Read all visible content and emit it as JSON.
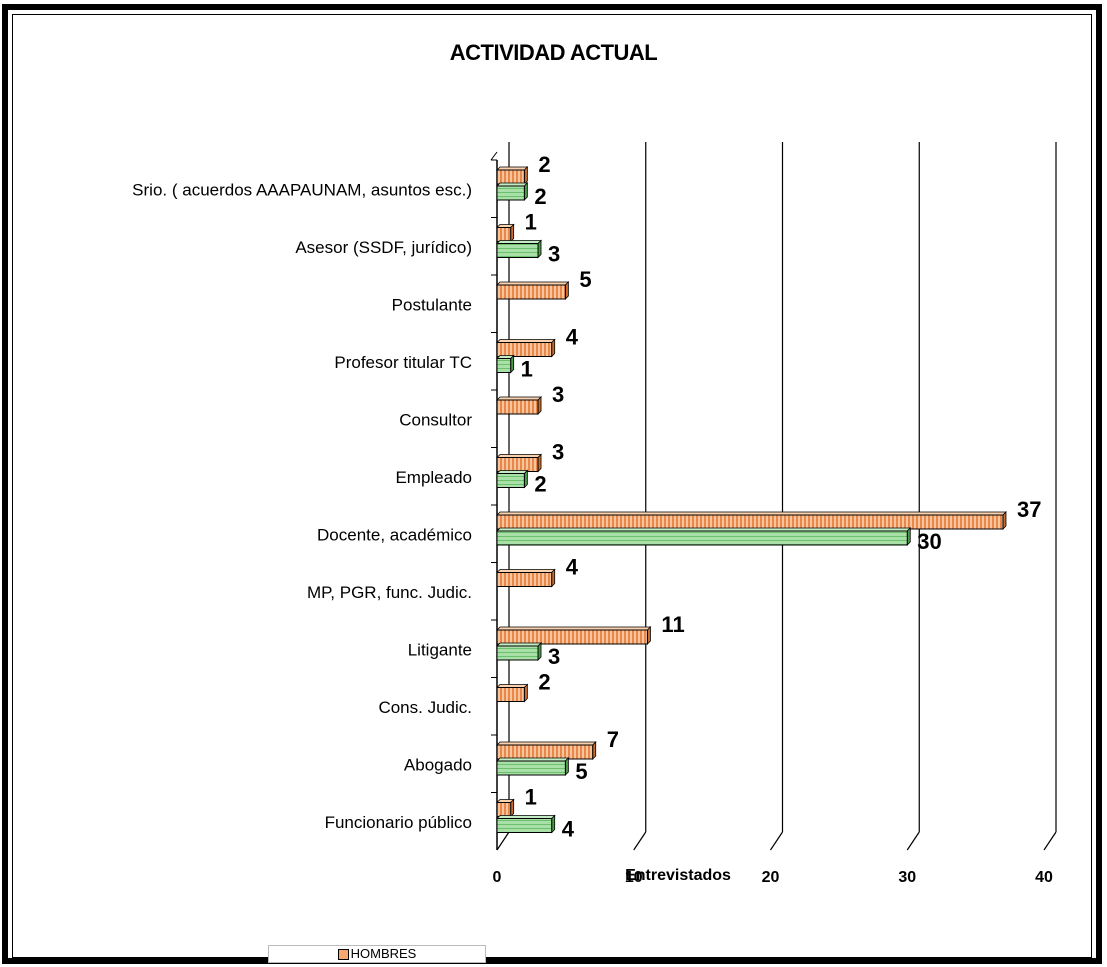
{
  "chart_data": {
    "type": "bar",
    "orientation": "horizontal",
    "title": "ACTIVIDAD ACTUAL",
    "xlabel": "Entrevistados",
    "ylabel": "",
    "xlim": [
      0,
      40
    ],
    "xticks": [
      0,
      10,
      20,
      30,
      40
    ],
    "grid": true,
    "legend_position": "bottom-left",
    "categories": [
      "Funcionario público",
      "Abogado",
      "Cons. Judic.",
      "Litigante",
      "MP, PGR, func. Judic.",
      "Docente, académico",
      "Empleado",
      "Consultor",
      "Profesor titular TC",
      "Postulante",
      "Asesor (SSDF, jurídico)",
      "Srio. ( acuerdos  AAAPAUNAM, asuntos esc.)"
    ],
    "series": [
      {
        "name": "HOMBRES",
        "color": "#f4a870",
        "values": [
          1,
          7,
          2,
          11,
          4,
          37,
          3,
          3,
          4,
          5,
          1,
          2
        ]
      },
      {
        "name": "",
        "color": "#8fd48f",
        "values": [
          4,
          5,
          null,
          3,
          null,
          30,
          2,
          null,
          1,
          null,
          3,
          2
        ]
      }
    ]
  }
}
